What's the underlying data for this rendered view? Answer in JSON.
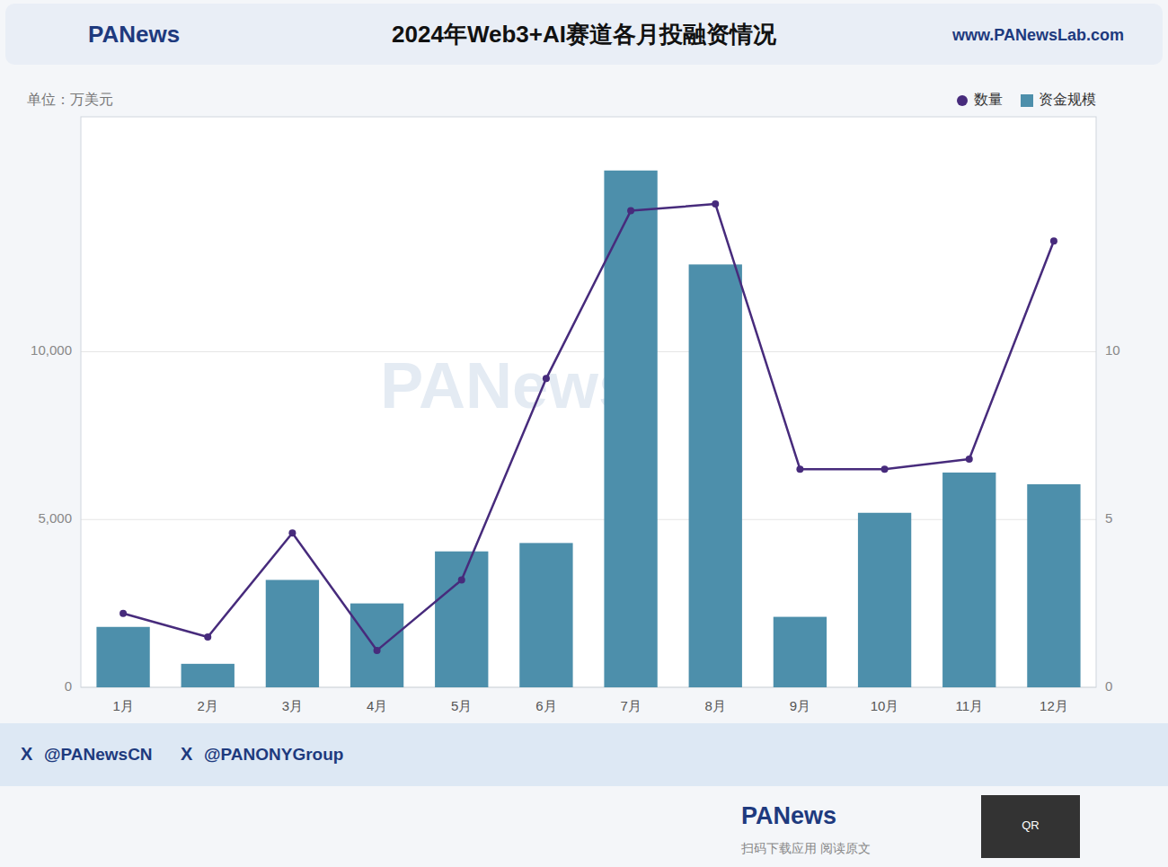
{
  "chart_data": {
    "type": "bar",
    "title": "2024年Web3+AI赛道各月投融资情况",
    "y_label": "单位：万美元",
    "categories": [
      "1月",
      "2月",
      "3月",
      "4月",
      "5月",
      "6月",
      "7月",
      "8月",
      "9月",
      "10月",
      "11月",
      "12月"
    ],
    "series": [
      {
        "name": "数量",
        "type": "line",
        "axis": "y2",
        "color": "#472b7c",
        "marker": "circle",
        "values": [
          2.2,
          1.5,
          4.6,
          1.1,
          3.2,
          9.2,
          14.2,
          14.4,
          6.5,
          6.5,
          6.8,
          13.3
        ]
      },
      {
        "name": "资金规模",
        "type": "bar",
        "color": "#4d8fab",
        "values": [
          1800,
          700,
          3200,
          2500,
          4050,
          4300,
          15400,
          12600,
          2100,
          5200,
          6400,
          6050
        ]
      }
    ],
    "ylim": [
      0,
      17000
    ],
    "yticks": [
      0,
      {
        "value": 5000,
        "label": "5,000"
      },
      {
        "value": 10000,
        "label": "10,000"
      }
    ],
    "y2lim": [
      0,
      17
    ],
    "y2ticks": [
      0,
      5,
      10
    ],
    "grid": true,
    "legend": "upper right",
    "annotations": [
      "PANews",
      "www.PANewsLab.com",
      "X",
      "@PANewsCN",
      "X",
      "@PANONYGroup",
      "PANews",
      "扫码下载应用  阅读原文",
      "QR",
      "PANews"
    ]
  }
}
